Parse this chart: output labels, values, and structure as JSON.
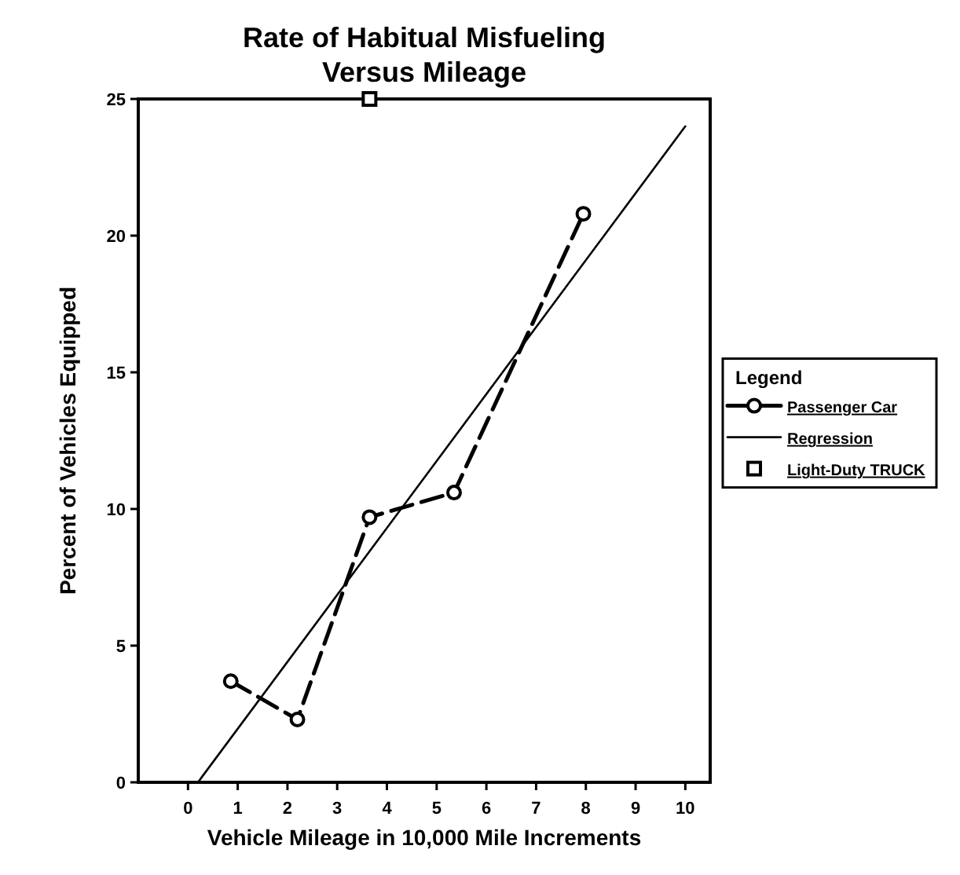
{
  "chart_data": {
    "type": "line",
    "title": "Rate of Habitual Misfueling\nVersus Mileage",
    "xlabel": "Vehicle Mileage in 10,000 Mile Increments",
    "ylabel": "Percent of Vehicles Equipped",
    "xlim": [
      -1,
      10.5
    ],
    "xticks": [
      0,
      1,
      2,
      3,
      4,
      5,
      6,
      7,
      8,
      9,
      10
    ],
    "ylim": [
      0,
      25
    ],
    "yticks": [
      0,
      5,
      10,
      15,
      20,
      25
    ],
    "grid": false,
    "legend": "right",
    "legend_title": "Legend",
    "series": [
      {
        "name": "Passenger Car",
        "color": "#000000",
        "marker": "circle",
        "line_style": "dashed",
        "x": [
          0.86,
          2.2,
          3.65,
          5.35,
          7.95
        ],
        "values": [
          3.7,
          2.3,
          9.7,
          10.6,
          20.8
        ]
      },
      {
        "name": "Regression",
        "color": "#000000",
        "marker": "none",
        "line_style": "solid",
        "x": [
          0.2,
          10
        ],
        "values": [
          0,
          24
        ]
      },
      {
        "name": "Light-Duty TRUCK",
        "color": "#000000",
        "type": "scatter",
        "marker": "square",
        "x": [
          3.65
        ],
        "values": [
          25
        ]
      }
    ]
  }
}
